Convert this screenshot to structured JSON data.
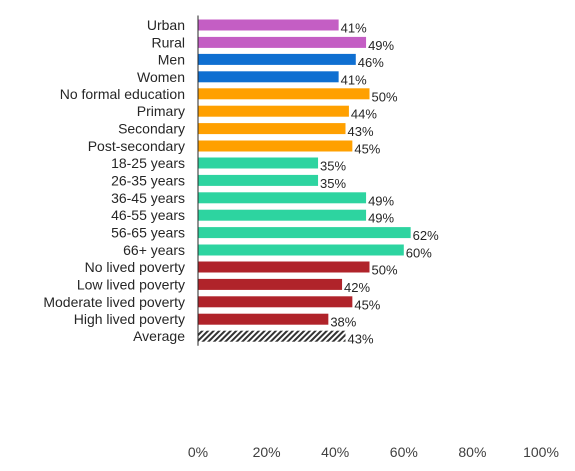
{
  "chart_data": {
    "type": "bar",
    "orientation": "horizontal",
    "xlim": [
      0,
      100
    ],
    "x_ticks": [
      "0%",
      "20%",
      "40%",
      "60%",
      "80%",
      "100%"
    ],
    "grid": false,
    "legend": "none",
    "groups": [
      {
        "color": "#c45ec4",
        "bars": [
          {
            "label": "Urban",
            "value": 41,
            "value_label": "41%"
          },
          {
            "label": "Rural",
            "value": 49,
            "value_label": "49%"
          }
        ]
      },
      {
        "color": "#0f6fd1",
        "bars": [
          {
            "label": "Men",
            "value": 46,
            "value_label": "46%"
          },
          {
            "label": "Women",
            "value": 41,
            "value_label": "41%"
          }
        ]
      },
      {
        "color": "#ffa000",
        "bars": [
          {
            "label": "No formal education",
            "value": 50,
            "value_label": "50%"
          },
          {
            "label": "Primary",
            "value": 44,
            "value_label": "44%"
          },
          {
            "label": "Secondary",
            "value": 43,
            "value_label": "43%"
          },
          {
            "label": "Post-secondary",
            "value": 45,
            "value_label": "45%"
          }
        ]
      },
      {
        "color": "#2dd4a0",
        "bars": [
          {
            "label": "18-25 years",
            "value": 35,
            "value_label": "35%"
          },
          {
            "label": "26-35 years",
            "value": 35,
            "value_label": "35%"
          },
          {
            "label": "36-45 years",
            "value": 49,
            "value_label": "49%"
          },
          {
            "label": "46-55 years",
            "value": 49,
            "value_label": "49%"
          },
          {
            "label": "56-65 years",
            "value": 62,
            "value_label": "62%"
          },
          {
            "label": "66+ years",
            "value": 60,
            "value_label": "60%"
          }
        ]
      },
      {
        "color": "#b0232a",
        "bars": [
          {
            "label": "No lived poverty",
            "value": 50,
            "value_label": "50%"
          },
          {
            "label": "Low lived poverty",
            "value": 42,
            "value_label": "42%"
          },
          {
            "label": "Moderate lived poverty",
            "value": 45,
            "value_label": "45%"
          },
          {
            "label": "High lived poverty",
            "value": 38,
            "value_label": "38%"
          }
        ]
      },
      {
        "color": "#333333",
        "pattern": "diagonal-hatch",
        "bars": [
          {
            "label": "Average",
            "value": 43,
            "value_label": "43%"
          }
        ]
      }
    ]
  }
}
